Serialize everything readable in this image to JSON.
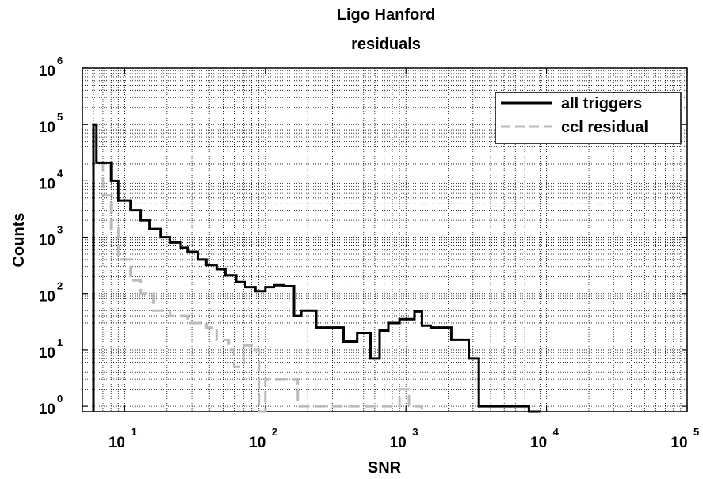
{
  "chart_data": {
    "type": "line",
    "title": [
      "Ligo Hanford",
      "residuals"
    ],
    "xlabel": "SNR",
    "ylabel": "Counts",
    "xscale": "log",
    "yscale": "log",
    "xlim": [
      5,
      100000
    ],
    "ylim": [
      0.8,
      1000000
    ],
    "xticks": [
      10,
      100,
      1000,
      10000,
      100000
    ],
    "yticks": [
      1,
      10,
      100,
      1000,
      10000,
      100000,
      1000000
    ],
    "xtick_labels": [
      {
        "base": "10",
        "exp": "1"
      },
      {
        "base": "10",
        "exp": "2"
      },
      {
        "base": "10",
        "exp": "3"
      },
      {
        "base": "10",
        "exp": "4"
      },
      {
        "base": "10",
        "exp": "5"
      }
    ],
    "ytick_labels": [
      {
        "base": "10",
        "exp": "0"
      },
      {
        "base": "10",
        "exp": "1"
      },
      {
        "base": "10",
        "exp": "2"
      },
      {
        "base": "10",
        "exp": "3"
      },
      {
        "base": "10",
        "exp": "4"
      },
      {
        "base": "10",
        "exp": "5"
      },
      {
        "base": "10",
        "exp": "6"
      }
    ],
    "grid": true,
    "legend_position": "top-right",
    "series": [
      {
        "name": "all triggers",
        "style": "solid",
        "color": "#000000",
        "x": [
          6,
          6.3,
          7,
          8,
          9,
          11,
          13,
          15,
          18,
          21,
          25,
          28,
          33,
          38,
          45,
          52,
          62,
          72,
          85,
          100,
          115,
          135,
          160,
          180,
          230,
          280,
          360,
          450,
          560,
          650,
          750,
          900,
          1000,
          1150,
          1300,
          1500,
          2100,
          2800,
          3300,
          6000,
          7500,
          9000
        ],
        "y": [
          100000,
          21000,
          21000,
          10000,
          4500,
          3000,
          2000,
          1400,
          1000,
          800,
          650,
          550,
          400,
          320,
          270,
          210,
          160,
          130,
          110,
          130,
          140,
          135,
          40,
          50,
          25,
          25,
          14,
          20,
          7,
          22,
          30,
          35,
          35,
          48,
          27,
          25,
          15,
          7,
          1,
          1,
          0.8,
          0.8
        ]
      },
      {
        "name": "ccl residual",
        "style": "dashed",
        "color": "#bbbbbb",
        "x": [
          6,
          6.3,
          7,
          8,
          9,
          10,
          11,
          13,
          16,
          21,
          28,
          38,
          45,
          55,
          60,
          70,
          80,
          90,
          100,
          170,
          900,
          1050,
          1100,
          1300
        ],
        "y": [
          100000,
          21000,
          5500,
          1400,
          400,
          400,
          170,
          100,
          50,
          40,
          30,
          25,
          15,
          10,
          5,
          12,
          10,
          0.8,
          3,
          1,
          2,
          1,
          1,
          0.8
        ]
      }
    ]
  }
}
